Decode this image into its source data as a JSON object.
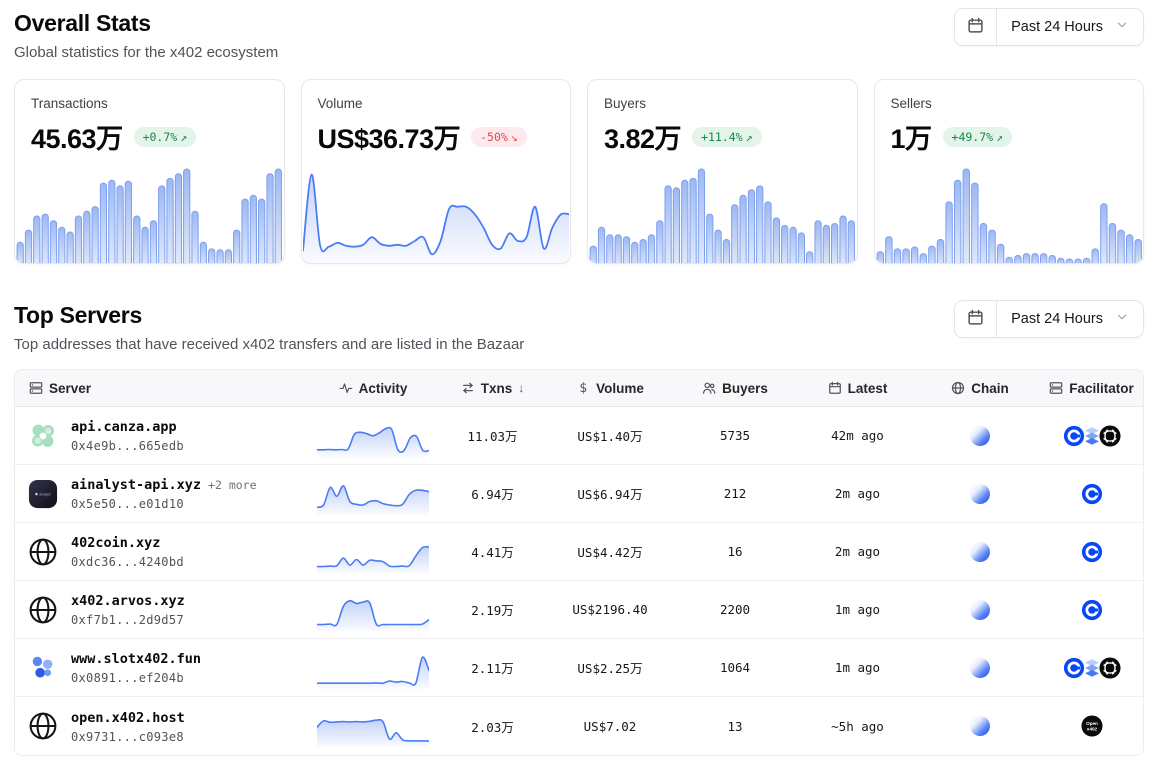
{
  "overall": {
    "title": "Overall Stats",
    "subtitle": "Global statistics for the x402 ecosystem",
    "period_label": "Past 24 Hours"
  },
  "top_servers": {
    "title": "Top Servers",
    "subtitle": "Top addresses that have received x402 transfers and are listed in the Bazaar",
    "period_label": "Past 24 Hours"
  },
  "colors": {
    "chart_blue_stroke": "#4b7bf5",
    "bar_stroke": "#7d9ff0",
    "green_badge_bg": "#e4f4ea",
    "green_badge_text": "#128a47",
    "red_badge_bg": "#fdeaec",
    "red_badge_text": "#e5484d",
    "coinbase_blue": "#0747f7",
    "header_bg": "#f8f8fa"
  },
  "stat_cards": [
    {
      "label": "Transactions",
      "value": "45.63万",
      "change": "+0.7%",
      "trend": "up",
      "chart_type": "bar",
      "values": [
        22,
        35,
        50,
        52,
        45,
        38,
        33,
        50,
        55,
        60,
        85,
        88,
        82,
        87,
        50,
        38,
        45,
        82,
        90,
        95,
        100,
        55,
        22,
        15,
        14,
        14,
        35,
        68,
        72,
        68,
        95,
        100
      ]
    },
    {
      "label": "Volume",
      "value": "US$36.73万",
      "change": "-50%",
      "trend": "down",
      "chart_type": "area",
      "values": [
        10,
        90,
        15,
        14,
        18,
        15,
        14,
        16,
        24,
        17,
        15,
        16,
        15,
        20,
        24,
        6,
        20,
        54,
        56,
        56,
        48,
        34,
        16,
        12,
        28,
        20,
        24,
        56,
        12,
        34,
        48,
        48
      ]
    },
    {
      "label": "Buyers",
      "value": "3.82万",
      "change": "+11.4%",
      "trend": "up",
      "chart_type": "bar",
      "values": [
        18,
        38,
        30,
        30,
        28,
        22,
        25,
        30,
        45,
        82,
        80,
        88,
        90,
        100,
        52,
        35,
        25,
        62,
        72,
        78,
        82,
        65,
        48,
        40,
        38,
        32,
        12,
        45,
        40,
        42,
        50,
        45
      ]
    },
    {
      "label": "Sellers",
      "value": "1万",
      "change": "+49.7%",
      "trend": "up",
      "chart_type": "bar",
      "values": [
        12,
        28,
        15,
        15,
        17,
        10,
        18,
        25,
        65,
        88,
        100,
        85,
        42,
        35,
        20,
        6,
        8,
        10,
        10,
        10,
        8,
        5,
        4,
        4,
        5,
        15,
        63,
        42,
        35,
        30,
        25
      ]
    }
  ],
  "table": {
    "columns": [
      {
        "id": "server",
        "label": "Server",
        "icon": "server-rack-icon"
      },
      {
        "id": "activity",
        "label": "Activity",
        "icon": "activity-icon"
      },
      {
        "id": "txns",
        "label": "Txns",
        "icon": "txns-icon",
        "sort": "desc"
      },
      {
        "id": "volume",
        "label": "Volume",
        "icon": "dollar-icon"
      },
      {
        "id": "buyers",
        "label": "Buyers",
        "icon": "buyers-icon"
      },
      {
        "id": "latest",
        "label": "Latest",
        "icon": "calendar-small-icon"
      },
      {
        "id": "chain",
        "label": "Chain",
        "icon": "globe-small-icon"
      },
      {
        "id": "facilitator",
        "label": "Facilitator",
        "icon": "server-rack-icon"
      }
    ],
    "rows": [
      {
        "icon": "server-clover-green-icon",
        "server": "api.canza.app",
        "extra": "",
        "address": "0x4e9b...665edb",
        "activity": [
          12,
          12,
          13,
          12,
          13,
          14,
          56,
          62,
          58,
          52,
          60,
          72,
          70,
          12,
          10,
          46,
          50,
          10,
          10
        ],
        "txns": "11.03万",
        "volume": "US$1.40万",
        "buyers": "5735",
        "latest": "42m ago",
        "chain": "base-chain-icon",
        "facilitators": [
          "facilitator-coinbase-icon",
          "facilitator-layers-icon",
          "facilitator-x402-icon"
        ]
      },
      {
        "icon": "server-avatar-dark-icon",
        "server": "ainalyst-api.xyz",
        "extra": "+2 more",
        "address": "0x5e50...e01d10",
        "activity": [
          14,
          20,
          70,
          45,
          75,
          30,
          22,
          20,
          30,
          32,
          24,
          20,
          18,
          22,
          50,
          62,
          62,
          58
        ],
        "txns": "6.94万",
        "volume": "US$6.94万",
        "buyers": "212",
        "latest": "2m ago",
        "chain": "base-chain-icon",
        "facilitators": [
          "facilitator-coinbase-icon"
        ]
      },
      {
        "icon": "server-globe-icon",
        "server": "402coin.xyz",
        "extra": "",
        "address": "0xdc36...4240bd",
        "activity": [
          10,
          10,
          11,
          12,
          34,
          14,
          30,
          14,
          28,
          26,
          24,
          11,
          10,
          11,
          12,
          40,
          64,
          66
        ],
        "txns": "4.41万",
        "volume": "US$4.42万",
        "buyers": "16",
        "latest": "2m ago",
        "chain": "base-chain-icon",
        "facilitators": [
          "facilitator-coinbase-icon"
        ]
      },
      {
        "icon": "server-globe-icon",
        "server": "x402.arvos.xyz",
        "extra": "",
        "address": "0xf7b1...2d9d57",
        "activity": [
          10,
          10,
          11,
          10,
          62,
          78,
          70,
          74,
          72,
          11,
          10,
          10,
          10,
          10,
          10,
          10,
          11,
          24
        ],
        "txns": "2.19万",
        "volume": "US$2196.40",
        "buyers": "2200",
        "latest": "1m ago",
        "chain": "base-chain-icon",
        "facilitators": [
          "facilitator-coinbase-icon"
        ]
      },
      {
        "icon": "server-dots-blue-icon",
        "server": "www.slotx402.fun",
        "extra": "",
        "address": "0x0891...ef204b",
        "activity": [
          8,
          8,
          8,
          8,
          8,
          8,
          8,
          8,
          8,
          9,
          8,
          14,
          11,
          13,
          9,
          8,
          82,
          45
        ],
        "txns": "2.11万",
        "volume": "US$2.25万",
        "buyers": "1064",
        "latest": "1m ago",
        "chain": "base-chain-icon",
        "facilitators": [
          "facilitator-coinbase-icon",
          "facilitator-layers-icon",
          "facilitator-x402-icon"
        ]
      },
      {
        "icon": "server-globe-icon",
        "server": "open.x402.host",
        "extra": "",
        "address": "0x9731...c093e8",
        "activity": [
          48,
          66,
          62,
          63,
          64,
          63,
          64,
          63,
          65,
          68,
          64,
          14,
          32,
          12,
          9,
          9,
          9,
          9
        ],
        "txns": "2.03万",
        "volume": "US$7.02",
        "buyers": "13",
        "latest": "~5h ago",
        "chain": "base-chain-icon",
        "facilitators": [
          "facilitator-openx402-icon"
        ]
      }
    ]
  }
}
